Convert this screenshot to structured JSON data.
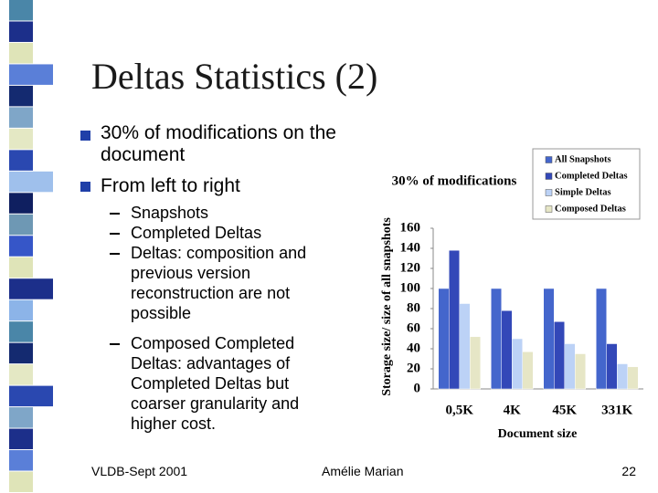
{
  "title": "Deltas Statistics (2)",
  "bullets": [
    "30% of modifications on the document",
    "From left to right"
  ],
  "sub_bullets": [
    "Snapshots",
    "Completed Deltas",
    "Deltas: composition and previous version reconstruction are not possible",
    "Composed Completed Deltas: advantages of Completed Deltas but coarser granularity and higher cost."
  ],
  "footer": {
    "left": "VLDB-Sept 2001",
    "center": "Amélie Marian",
    "right": "22"
  },
  "chart_data": {
    "type": "bar",
    "title": "30% of modifications",
    "x_label": "Document size",
    "y_label": "Storage size/ size of all snapshots",
    "categories": [
      "0,5K",
      "4K",
      "45K",
      "331K"
    ],
    "series": [
      {
        "name": "All Snapshots",
        "color": "#4466cc",
        "values": [
          100,
          100,
          100,
          100
        ]
      },
      {
        "name": "Completed Deltas",
        "color": "#3348b8",
        "values": [
          138,
          78,
          67,
          45
        ]
      },
      {
        "name": "Simple Deltas",
        "color": "#bcd2f6",
        "values": [
          85,
          50,
          45,
          25
        ]
      },
      {
        "name": "Composed Deltas",
        "color": "#e6e6c6",
        "values": [
          52,
          37,
          35,
          22
        ]
      }
    ],
    "ylim": [
      0,
      160
    ],
    "yticks": [
      0,
      20,
      40,
      60,
      80,
      100,
      120,
      140,
      160
    ],
    "legend": "upper right"
  }
}
